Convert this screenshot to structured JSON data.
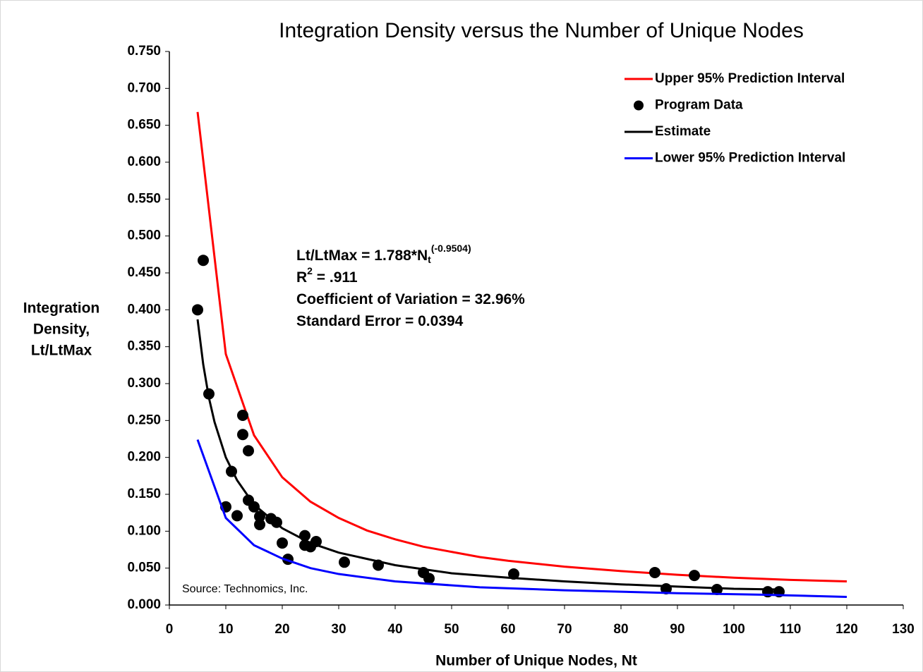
{
  "chart_data": {
    "type": "scatter",
    "title": "Integration Density versus the Number of Unique Nodes",
    "x_label": "Number of Unique Nodes, Nt",
    "y_label": [
      "Integration",
      "Density,",
      "Lt/LtMax"
    ],
    "source": "Source: Technomics, Inc.",
    "annotations": [
      {
        "text": "Lt/LtMax = 1.788*N",
        "sub": "t",
        "sup": "(-0.9504)"
      },
      {
        "text": "R",
        "sup": "2",
        "rest": " = .911"
      },
      {
        "text": "Coefficient of Variation = 32.96%"
      },
      {
        "text": "Standard Error = 0.0394"
      }
    ],
    "xlim": [
      0,
      130
    ],
    "xticks": [
      0,
      10,
      20,
      30,
      40,
      50,
      60,
      70,
      80,
      90,
      100,
      110,
      120,
      130
    ],
    "ylim": [
      0,
      0.75
    ],
    "yticks": [
      {
        "value": 0,
        "label": "0.000"
      },
      {
        "value": 0.05,
        "label": "0.050"
      },
      {
        "value": 0.1,
        "label": "0.100"
      },
      {
        "value": 0.15,
        "label": "0.150"
      },
      {
        "value": 0.2,
        "label": "0.200"
      },
      {
        "value": 0.25,
        "label": "0.250"
      },
      {
        "value": 0.3,
        "label": "0.300"
      },
      {
        "value": 0.35,
        "label": "0.350"
      },
      {
        "value": 0.4,
        "label": "0.400"
      },
      {
        "value": 0.45,
        "label": "0.450"
      },
      {
        "value": 0.5,
        "label": "0.500"
      },
      {
        "value": 0.55,
        "label": "0.550"
      },
      {
        "value": 0.6,
        "label": "0.600"
      },
      {
        "value": 0.65,
        "label": "0.650"
      },
      {
        "value": 0.7,
        "label": "0.700"
      },
      {
        "value": 0.75,
        "label": "0.750"
      }
    ],
    "grid": false,
    "legend": "top-right",
    "series": [
      {
        "name": "Upper 95% Prediction Interval",
        "color": "#ff0000",
        "style": "line",
        "x": [
          5,
          10,
          15,
          20,
          25,
          30,
          35,
          40,
          45,
          50,
          55,
          60,
          70,
          80,
          90,
          100,
          110,
          120
        ],
        "values": [
          0.668,
          0.34,
          0.23,
          0.173,
          0.14,
          0.118,
          0.101,
          0.089,
          0.079,
          0.072,
          0.065,
          0.06,
          0.052,
          0.046,
          0.041,
          0.037,
          0.034,
          0.032
        ]
      },
      {
        "name": "Program Data",
        "color": "#000000",
        "style": "markers",
        "x": [
          5,
          6,
          7,
          11,
          10,
          12,
          13,
          13,
          14,
          14,
          15,
          16,
          16,
          18,
          19,
          20,
          21,
          24,
          24,
          25,
          26,
          31,
          37,
          45,
          46,
          61,
          86,
          88,
          93,
          97,
          106,
          108
        ],
        "values": [
          0.4,
          0.467,
          0.286,
          0.181,
          0.133,
          0.121,
          0.257,
          0.231,
          0.209,
          0.142,
          0.133,
          0.12,
          0.109,
          0.117,
          0.112,
          0.084,
          0.062,
          0.094,
          0.081,
          0.079,
          0.086,
          0.058,
          0.054,
          0.044,
          0.036,
          0.042,
          0.044,
          0.022,
          0.04,
          0.021,
          0.018,
          0.018
        ]
      },
      {
        "name": "Estimate",
        "color": "#000000",
        "style": "line",
        "x": [
          5,
          6,
          7,
          8,
          10,
          12,
          15,
          20,
          25,
          30,
          40,
          50,
          60,
          70,
          80,
          90,
          100,
          108
        ],
        "values": [
          0.387,
          0.326,
          0.281,
          0.248,
          0.2,
          0.169,
          0.136,
          0.104,
          0.084,
          0.071,
          0.054,
          0.043,
          0.037,
          0.032,
          0.028,
          0.025,
          0.022,
          0.021
        ]
      },
      {
        "name": "Lower 95% Prediction Interval",
        "color": "#0000ff",
        "style": "line",
        "x": [
          5,
          10,
          15,
          20,
          25,
          30,
          40,
          55,
          70,
          90,
          105,
          120
        ],
        "values": [
          0.224,
          0.118,
          0.081,
          0.063,
          0.05,
          0.042,
          0.032,
          0.024,
          0.02,
          0.016,
          0.014,
          0.011
        ]
      }
    ]
  }
}
